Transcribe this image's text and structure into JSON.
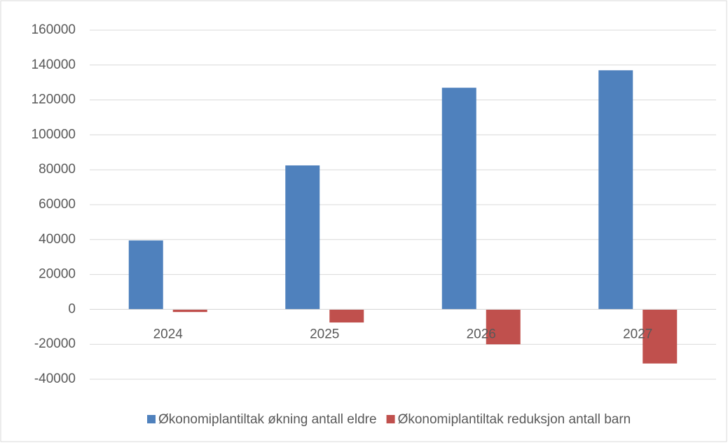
{
  "chart_data": {
    "type": "bar",
    "categories": [
      "2024",
      "2025",
      "2026",
      "2027"
    ],
    "series": [
      {
        "name": "Økonomiplantiltak økning antall eldre",
        "color": "#4f81bd",
        "values": [
          39500,
          82500,
          127000,
          137000
        ]
      },
      {
        "name": "Økonomiplantiltak reduksjon antall barn",
        "color": "#c0504d",
        "values": [
          -1500,
          -7500,
          -20000,
          -31000
        ]
      }
    ],
    "ylim": [
      -40000,
      160000
    ],
    "yticks": [
      -40000,
      -20000,
      0,
      20000,
      40000,
      60000,
      80000,
      100000,
      120000,
      140000,
      160000
    ],
    "grid": true,
    "legend": "bottom"
  }
}
